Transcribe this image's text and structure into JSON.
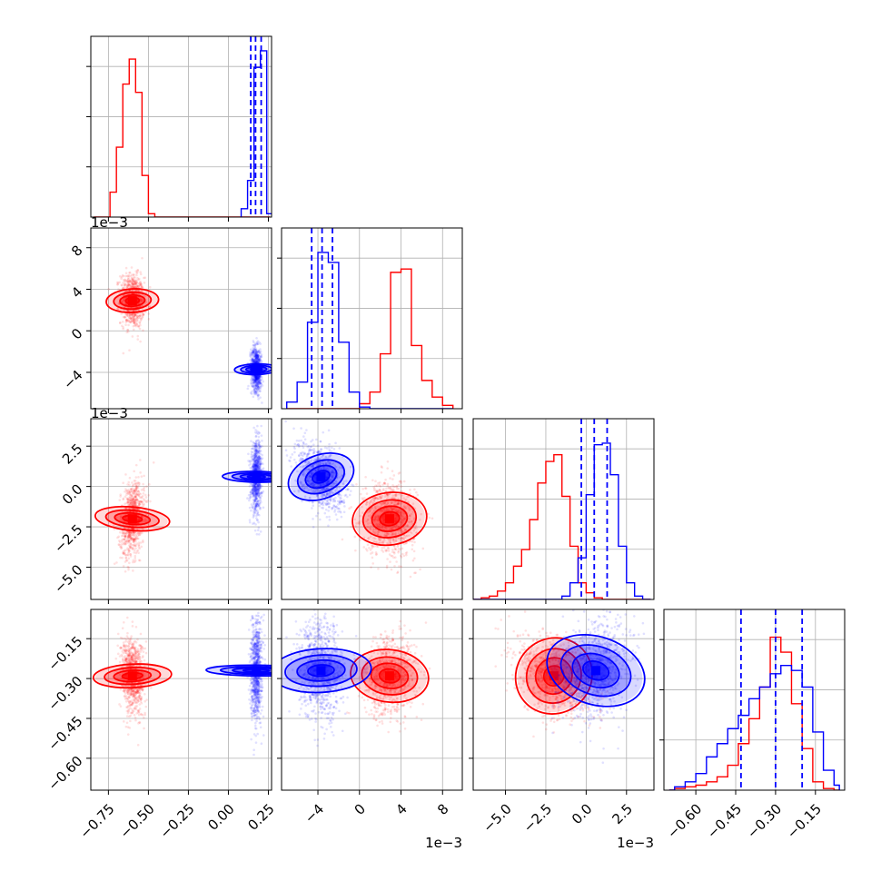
{
  "chart_data": {
    "type": "corner",
    "colors": {
      "red": "#ff0000",
      "blue": "#0000ff"
    },
    "params": [
      {
        "lim": [
          -0.86,
          0.27
        ],
        "ticks": [
          -0.75,
          -0.5,
          -0.25,
          0.0,
          0.25
        ],
        "tick_labels": [
          "−0.75",
          "−0.50",
          "−0.25",
          "0.00",
          "0.25"
        ],
        "offset": ""
      },
      {
        "lim": [
          -7.5,
          9.9
        ],
        "ticks": [
          -4,
          0,
          4,
          8
        ],
        "tick_labels": [
          "−4",
          "0",
          "4",
          "8"
        ],
        "offset": "1e−3"
      },
      {
        "lim": [
          -7.0,
          4.2
        ],
        "ticks": [
          -5.0,
          -2.5,
          0.0,
          2.5
        ],
        "tick_labels": [
          "−5.0",
          "−2.5",
          "0.0",
          "2.5"
        ],
        "offset": "1e−3"
      },
      {
        "lim": [
          -0.72,
          -0.04
        ],
        "ticks": [
          -0.6,
          -0.45,
          -0.3,
          -0.15
        ],
        "tick_labels": [
          "−0.60",
          "−0.45",
          "−0.30",
          "−0.15"
        ],
        "offset": ""
      }
    ],
    "series": [
      {
        "color": "#ff0000",
        "hist": [
          {
            "edges": [
              -0.84,
              -0.82,
              -0.8,
              -0.78,
              -0.76,
              -0.74,
              -0.72,
              -0.7,
              -0.68,
              -0.66,
              -0.64,
              -0.62,
              -0.6,
              -0.58,
              -0.56,
              -0.54,
              -0.52,
              -0.5,
              -0.48,
              -0.46,
              -0.44,
              -0.42,
              -0.4,
              -0.38,
              -0.36,
              -0.34,
              -0.32,
              -0.3,
              -0.28,
              -0.26,
              -0.24,
              -0.22,
              -0.2,
              -0.18,
              -0.16,
              -0.14,
              -0.12,
              -0.1,
              -0.08,
              -0.06,
              -0.04,
              -0.02,
              0.0,
              0.02,
              0.04,
              0.06,
              0.08,
              0.1,
              0.12,
              0.14,
              0.16,
              0.18,
              0.2,
              0.22,
              0.24,
              0.26
            ],
            "counts": [
              0,
              0,
              0,
              0,
              0,
              0.15,
              0.15,
              0.42,
              0.42,
              0.8,
              0.8,
              0.95,
              0.95,
              0.75,
              0.75,
              0.25,
              0.25,
              0.02,
              0.02,
              0,
              0,
              0,
              0,
              0,
              0,
              0,
              0,
              0,
              0,
              0,
              0,
              0,
              0,
              0,
              0,
              0,
              0,
              0,
              0,
              0,
              0,
              0,
              0,
              0,
              0,
              0,
              0,
              0,
              0,
              0,
              0,
              0,
              0,
              0,
              0
            ]
          },
          {
            "edges": [
              -7.0,
              -6.0,
              -5.0,
              -4.0,
              -3.0,
              -2.0,
              -1.0,
              0.0,
              1.0,
              2.0,
              3.0,
              4.0,
              5.0,
              6.0,
              7.0,
              8.0,
              9.0
            ],
            "counts": [
              0,
              0,
              0,
              0,
              0,
              0,
              0,
              0.03,
              0.1,
              0.33,
              0.82,
              0.84,
              0.38,
              0.17,
              0.07,
              0.02
            ]
          },
          {
            "edges": [
              -7.0,
              -6.5,
              -6.0,
              -5.5,
              -5.0,
              -4.5,
              -4.0,
              -3.5,
              -3.0,
              -2.5,
              -2.0,
              -1.5,
              -1.0,
              -0.5,
              0.0,
              0.5,
              1.0,
              1.5,
              2.0,
              2.5,
              3.0,
              3.5,
              4.0
            ],
            "counts": [
              0,
              0.01,
              0.02,
              0.05,
              0.1,
              0.2,
              0.3,
              0.48,
              0.7,
              0.83,
              0.87,
              0.62,
              0.32,
              0.1,
              0.04,
              0.01,
              0,
              0,
              0,
              0,
              0,
              0
            ]
          },
          {
            "edges": [
              -0.7,
              -0.68,
              -0.66,
              -0.64,
              -0.62,
              -0.6,
              -0.58,
              -0.56,
              -0.54,
              -0.52,
              -0.5,
              -0.48,
              -0.46,
              -0.44,
              -0.42,
              -0.4,
              -0.38,
              -0.36,
              -0.34,
              -0.32,
              -0.3,
              -0.28,
              -0.26,
              -0.24,
              -0.22,
              -0.2,
              -0.18,
              -0.16,
              -0.14,
              -0.12,
              -0.1,
              -0.08,
              -0.06
            ],
            "counts": [
              0,
              0.01,
              0.01,
              0.02,
              0.02,
              0.03,
              0.03,
              0.05,
              0.05,
              0.08,
              0.08,
              0.15,
              0.15,
              0.28,
              0.28,
              0.43,
              0.43,
              0.62,
              0.62,
              0.92,
              0.92,
              0.83,
              0.83,
              0.52,
              0.52,
              0.25,
              0.25,
              0.05,
              0.05,
              0.01,
              0.01,
              0
            ]
          }
        ],
        "center": [
          -0.6,
          0.0029,
          -0.002,
          -0.29
        ],
        "sigma": [
          0.035,
          0.0012,
          0.0011,
          0.07
        ],
        "corr": [
          [
            1,
            -0.1,
            0.25,
            -0.15
          ],
          [
            -0.1,
            1,
            -0.1,
            0.1
          ],
          [
            0.25,
            -0.1,
            1,
            -0.35
          ],
          [
            -0.15,
            0.1,
            -0.35,
            1
          ]
        ]
      },
      {
        "color": "#0000ff",
        "hist": [
          {
            "edges": [
              0.08,
              0.12,
              0.16,
              0.2,
              0.24,
              0.28
            ],
            "counts": [
              0.05,
              0.22,
              0.9,
              1.0,
              0.02
            ]
          },
          {
            "edges": [
              -7.0,
              -6.0,
              -5.0,
              -4.0,
              -3.0,
              -2.0,
              -1.0,
              0.0,
              1.0,
              2.0,
              3.0,
              4.0,
              5.0,
              6.0,
              7.0,
              8.0,
              9.0
            ],
            "counts": [
              0.04,
              0.16,
              0.52,
              0.94,
              0.88,
              0.4,
              0.1,
              0.01,
              0,
              0,
              0,
              0,
              0,
              0,
              0,
              0
            ]
          },
          {
            "edges": [
              -7.0,
              -6.5,
              -6.0,
              -5.5,
              -5.0,
              -4.5,
              -4.0,
              -3.5,
              -3.0,
              -2.5,
              -2.0,
              -1.5,
              -1.0,
              -0.5,
              0.0,
              0.5,
              1.0,
              1.5,
              2.0,
              2.5,
              3.0,
              3.5,
              4.0
            ],
            "counts": [
              0,
              0,
              0,
              0,
              0,
              0,
              0,
              0,
              0,
              0,
              0,
              0.02,
              0.1,
              0.25,
              0.63,
              0.93,
              0.94,
              0.75,
              0.32,
              0.1,
              0.02,
              0
            ]
          },
          {
            "edges": [
              -0.7,
              -0.68,
              -0.66,
              -0.64,
              -0.62,
              -0.6,
              -0.58,
              -0.56,
              -0.54,
              -0.52,
              -0.5,
              -0.48,
              -0.46,
              -0.44,
              -0.42,
              -0.4,
              -0.38,
              -0.36,
              -0.34,
              -0.32,
              -0.3,
              -0.28,
              -0.26,
              -0.24,
              -0.22,
              -0.2,
              -0.18,
              -0.16,
              -0.14,
              -0.12,
              -0.1,
              -0.08,
              -0.06
            ],
            "counts": [
              0,
              0.02,
              0.02,
              0.05,
              0.05,
              0.1,
              0.1,
              0.2,
              0.2,
              0.28,
              0.28,
              0.37,
              0.37,
              0.45,
              0.45,
              0.55,
              0.55,
              0.62,
              0.62,
              0.7,
              0.7,
              0.75,
              0.75,
              0.72,
              0.72,
              0.62,
              0.62,
              0.35,
              0.35,
              0.12,
              0.12,
              0.03
            ]
          }
        ],
        "center": [
          0.175,
          -0.0037,
          0.0006,
          -0.27
        ],
        "sigma": [
          0.016,
          0.001,
          0.001,
          0.09
        ],
        "corr": [
          [
            1,
            -0.1,
            0.1,
            0.1
          ],
          [
            -0.1,
            1,
            -0.4,
            -0.1
          ],
          [
            0.1,
            -0.4,
            1,
            0.3
          ],
          [
            0.1,
            -0.1,
            0.3,
            1
          ]
        ]
      }
    ],
    "quantile_lines": [
      {
        "param": 0,
        "color": "#0000ff",
        "values": [
          0.14,
          0.17,
          0.205
        ]
      },
      {
        "param": 1,
        "color": "#0000ff",
        "values": [
          -4.6,
          -3.6,
          -2.6
        ]
      },
      {
        "param": 2,
        "color": "#0000ff",
        "values": [
          -0.3,
          0.5,
          1.3
        ]
      },
      {
        "param": 3,
        "color": "#0000ff",
        "values": [
          -0.43,
          -0.3,
          -0.2
        ]
      }
    ],
    "grid": true,
    "legend": "none"
  }
}
